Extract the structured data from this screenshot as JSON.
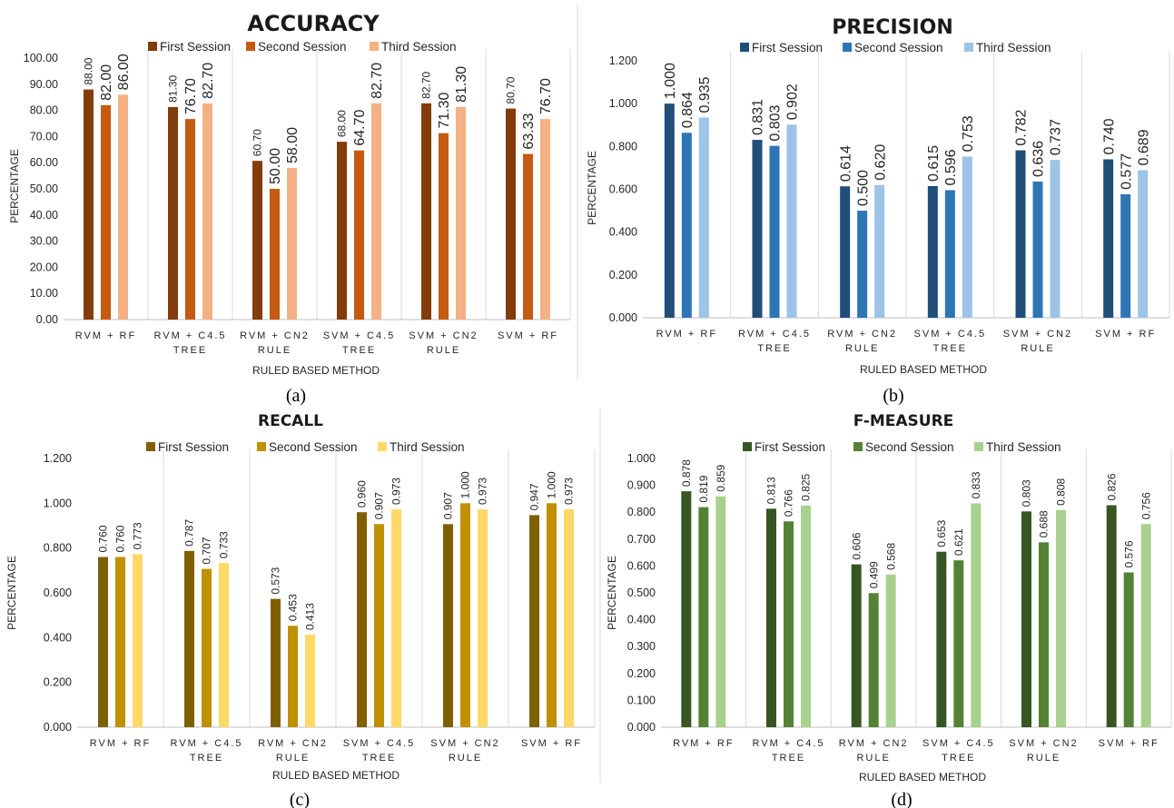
{
  "chart_data": [
    {
      "type": "bar",
      "panel_label": "(a)",
      "title": "ACCURACY",
      "xlabel": "RULED BASED METHOD",
      "ylabel": "PERCENTAGE",
      "ylim": [
        0,
        100
      ],
      "yticks": [
        "0.00",
        "10.00",
        "20.00",
        "30.00",
        "40.00",
        "50.00",
        "60.00",
        "70.00",
        "80.00",
        "90.00",
        "100.00"
      ],
      "categories": [
        [
          "RVM + RF"
        ],
        [
          "RVM + C4.5",
          "TREE"
        ],
        [
          "RVM + CN2",
          "RULE"
        ],
        [
          "SVM + C4.5",
          "TREE"
        ],
        [
          "SVM + CN2",
          "RULE"
        ],
        [
          "SVM + RF"
        ]
      ],
      "series": [
        {
          "name": "First Session",
          "color": "#843c0c",
          "values": [
            88.0,
            81.3,
            60.7,
            68.0,
            82.7,
            80.7
          ],
          "labels": [
            "88.00",
            "81.30",
            "60.70",
            "68.00",
            "82.70",
            "80.70"
          ]
        },
        {
          "name": "Second Session",
          "color": "#c55a11",
          "values": [
            82.0,
            76.7,
            50.0,
            64.7,
            71.3,
            63.33
          ],
          "labels": [
            "82.00",
            "76.70",
            "50.00",
            "64.70",
            "71.30",
            "63.33"
          ]
        },
        {
          "name": "Third Session",
          "color": "#f4b183",
          "values": [
            86.0,
            82.7,
            58.0,
            82.7,
            81.3,
            76.7
          ],
          "labels": [
            "86.00",
            "82.70",
            "58.00",
            "82.70",
            "81.30",
            "76.70"
          ]
        }
      ]
    },
    {
      "type": "bar",
      "panel_label": "(b)",
      "title": "PRECISION",
      "xlabel": "RULED BASED METHOD",
      "ylabel": "PERCENTAGE",
      "ylim": [
        0,
        1.2
      ],
      "yticks": [
        "0.000",
        "0.200",
        "0.400",
        "0.600",
        "0.800",
        "1.000",
        "1.200"
      ],
      "categories": [
        [
          "RVM + RF"
        ],
        [
          "RVM + C4.5",
          "TREE"
        ],
        [
          "RVM + CN2",
          "RULE"
        ],
        [
          "SVM + C4.5",
          "TREE"
        ],
        [
          "SVM + CN2",
          "RULE"
        ],
        [
          "SVM + RF"
        ]
      ],
      "series": [
        {
          "name": "First Session",
          "color": "#1f4e79",
          "values": [
            1.0,
            0.831,
            0.614,
            0.615,
            0.782,
            0.74
          ],
          "labels": [
            "1.000",
            "0.831",
            "0.614",
            "0.615",
            "0.782",
            "0.740"
          ]
        },
        {
          "name": "Second Session",
          "color": "#2e75b6",
          "values": [
            0.864,
            0.803,
            0.5,
            0.596,
            0.636,
            0.577
          ],
          "labels": [
            "0.864",
            "0.803",
            "0.500",
            "0.596",
            "0.636",
            "0.577"
          ]
        },
        {
          "name": "Third Session",
          "color": "#9dc3e6",
          "values": [
            0.935,
            0.902,
            0.62,
            0.753,
            0.737,
            0.689
          ],
          "labels": [
            "0.935",
            "0.902",
            "0.620",
            "0.753",
            "0.737",
            "0.689"
          ]
        }
      ]
    },
    {
      "type": "bar",
      "panel_label": "(c)",
      "title": "RECALL",
      "xlabel": "RULED BASED METHOD",
      "ylabel": "PERCENTAGE",
      "ylim": [
        0,
        1.2
      ],
      "yticks": [
        "0.000",
        "0.200",
        "0.400",
        "0.600",
        "0.800",
        "1.000",
        "1.200"
      ],
      "categories": [
        [
          "RVM + RF"
        ],
        [
          "RVM + C4.5",
          "TREE"
        ],
        [
          "RVM + CN2",
          "RULE"
        ],
        [
          "SVM + C4.5",
          "TREE"
        ],
        [
          "SVM + CN2",
          "RULE"
        ],
        [
          "SVM + RF"
        ]
      ],
      "series": [
        {
          "name": "First Session",
          "color": "#7f6000",
          "values": [
            0.76,
            0.787,
            0.573,
            0.96,
            0.907,
            0.947
          ],
          "labels": [
            "0.760",
            "0.787",
            "0.573",
            "0.960",
            "0.907",
            "0.947"
          ]
        },
        {
          "name": "Second Session",
          "color": "#bf9000",
          "values": [
            0.76,
            0.707,
            0.453,
            0.907,
            1.0,
            1.0
          ],
          "labels": [
            "0.760",
            "0.707",
            "0.453",
            "0.907",
            "1.000",
            "1.000"
          ]
        },
        {
          "name": "Third Session",
          "color": "#ffd966",
          "values": [
            0.773,
            0.733,
            0.413,
            0.973,
            0.973,
            0.973
          ],
          "labels": [
            "0.773",
            "0.733",
            "0.413",
            "0.973",
            "0.973",
            "0.973"
          ]
        }
      ]
    },
    {
      "type": "bar",
      "panel_label": "(d)",
      "title": "F-MEASURE",
      "xlabel": "RULED BASED METHOD",
      "ylabel": "PERCENTAGE",
      "ylim": [
        0,
        1.0
      ],
      "yticks": [
        "0.000",
        "0.100",
        "0.200",
        "0.300",
        "0.400",
        "0.500",
        "0.600",
        "0.700",
        "0.800",
        "0.900",
        "1.000"
      ],
      "categories": [
        [
          "RVM + RF"
        ],
        [
          "RVM + C4.5",
          "TREE"
        ],
        [
          "RVM + CN2",
          "RULE"
        ],
        [
          "SVM + C4.5",
          "TREE"
        ],
        [
          "SVM + CN2",
          "RULE"
        ],
        [
          "SVM + RF"
        ]
      ],
      "series": [
        {
          "name": "First Session",
          "color": "#375623",
          "values": [
            0.878,
            0.813,
            0.606,
            0.653,
            0.803,
            0.826
          ],
          "labels": [
            "0.878",
            "0.813",
            "0.606",
            "0.653",
            "0.803",
            "0.826"
          ]
        },
        {
          "name": "Second Session",
          "color": "#548235",
          "values": [
            0.819,
            0.766,
            0.499,
            0.621,
            0.688,
            0.576
          ],
          "labels": [
            "0.819",
            "0.766",
            "0.499",
            "0.621",
            "0.688",
            "0.576"
          ]
        },
        {
          "name": "Third Session",
          "color": "#a9d18e",
          "values": [
            0.859,
            0.825,
            0.568,
            0.833,
            0.808,
            0.756
          ],
          "labels": [
            "0.859",
            "0.825",
            "0.568",
            "0.833",
            "0.808",
            "0.756"
          ]
        }
      ]
    }
  ]
}
